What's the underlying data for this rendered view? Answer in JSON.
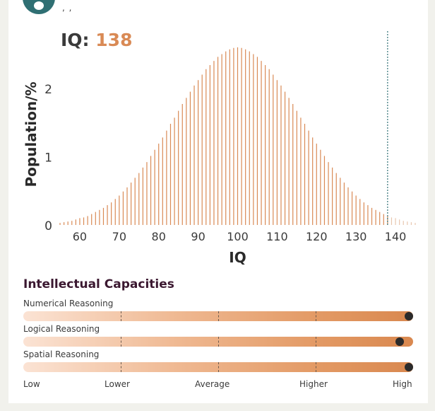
{
  "header": {
    "commas": ", ,"
  },
  "iq": {
    "label": "IQ:",
    "score": "138"
  },
  "chart_data": {
    "type": "bar",
    "title": "",
    "xlabel": "IQ",
    "ylabel": "Population/%",
    "xlim": [
      55,
      145
    ],
    "ylim": [
      0,
      2.65
    ],
    "x_ticks": [
      60,
      70,
      80,
      90,
      100,
      110,
      120,
      130,
      140
    ],
    "y_ticks": [
      0,
      1,
      2
    ],
    "marker_x": 138,
    "grid": false,
    "x": [
      55,
      56,
      57,
      58,
      59,
      60,
      61,
      62,
      63,
      64,
      65,
      66,
      67,
      68,
      69,
      70,
      71,
      72,
      73,
      74,
      75,
      76,
      77,
      78,
      79,
      80,
      81,
      82,
      83,
      84,
      85,
      86,
      87,
      88,
      89,
      90,
      91,
      92,
      93,
      94,
      95,
      96,
      97,
      98,
      99,
      100,
      101,
      102,
      103,
      104,
      105,
      106,
      107,
      108,
      109,
      110,
      111,
      112,
      113,
      114,
      115,
      116,
      117,
      118,
      119,
      120,
      121,
      122,
      123,
      124,
      125,
      126,
      127,
      128,
      129,
      130,
      131,
      132,
      133,
      134,
      135,
      136,
      137,
      138,
      139,
      140,
      141,
      142,
      143,
      144,
      145
    ],
    "values": [
      0.03,
      0.04,
      0.05,
      0.06,
      0.08,
      0.1,
      0.11,
      0.13,
      0.16,
      0.19,
      0.22,
      0.25,
      0.29,
      0.33,
      0.38,
      0.43,
      0.49,
      0.55,
      0.62,
      0.69,
      0.76,
      0.84,
      0.92,
      1.01,
      1.1,
      1.19,
      1.28,
      1.38,
      1.48,
      1.57,
      1.67,
      1.77,
      1.86,
      1.95,
      2.04,
      2.12,
      2.2,
      2.28,
      2.34,
      2.4,
      2.46,
      2.5,
      2.54,
      2.57,
      2.59,
      2.6,
      2.59,
      2.57,
      2.54,
      2.5,
      2.46,
      2.4,
      2.34,
      2.28,
      2.2,
      2.12,
      2.04,
      1.95,
      1.86,
      1.77,
      1.67,
      1.57,
      1.48,
      1.38,
      1.28,
      1.19,
      1.1,
      1.01,
      0.92,
      0.84,
      0.76,
      0.69,
      0.62,
      0.55,
      0.49,
      0.43,
      0.38,
      0.33,
      0.29,
      0.25,
      0.22,
      0.19,
      0.16,
      0.13,
      0.11,
      0.1,
      0.08,
      0.06,
      0.05,
      0.04,
      0.03
    ],
    "colors": {
      "bar": "#d98a55",
      "bar_faded": "#e8c6ae",
      "marker": "#2f6f73",
      "axis_text": "#3a3a3a"
    }
  },
  "capacities": {
    "title": "Intellectual Capacities",
    "items": [
      {
        "label": "Numerical Reasoning",
        "value": 1.0
      },
      {
        "label": "Logical Reasoning",
        "value": 0.975
      },
      {
        "label": "Spatial Reasoning",
        "value": 1.0
      }
    ],
    "scale": [
      "Low",
      "Lower",
      "Average",
      "Higher",
      "High"
    ]
  }
}
